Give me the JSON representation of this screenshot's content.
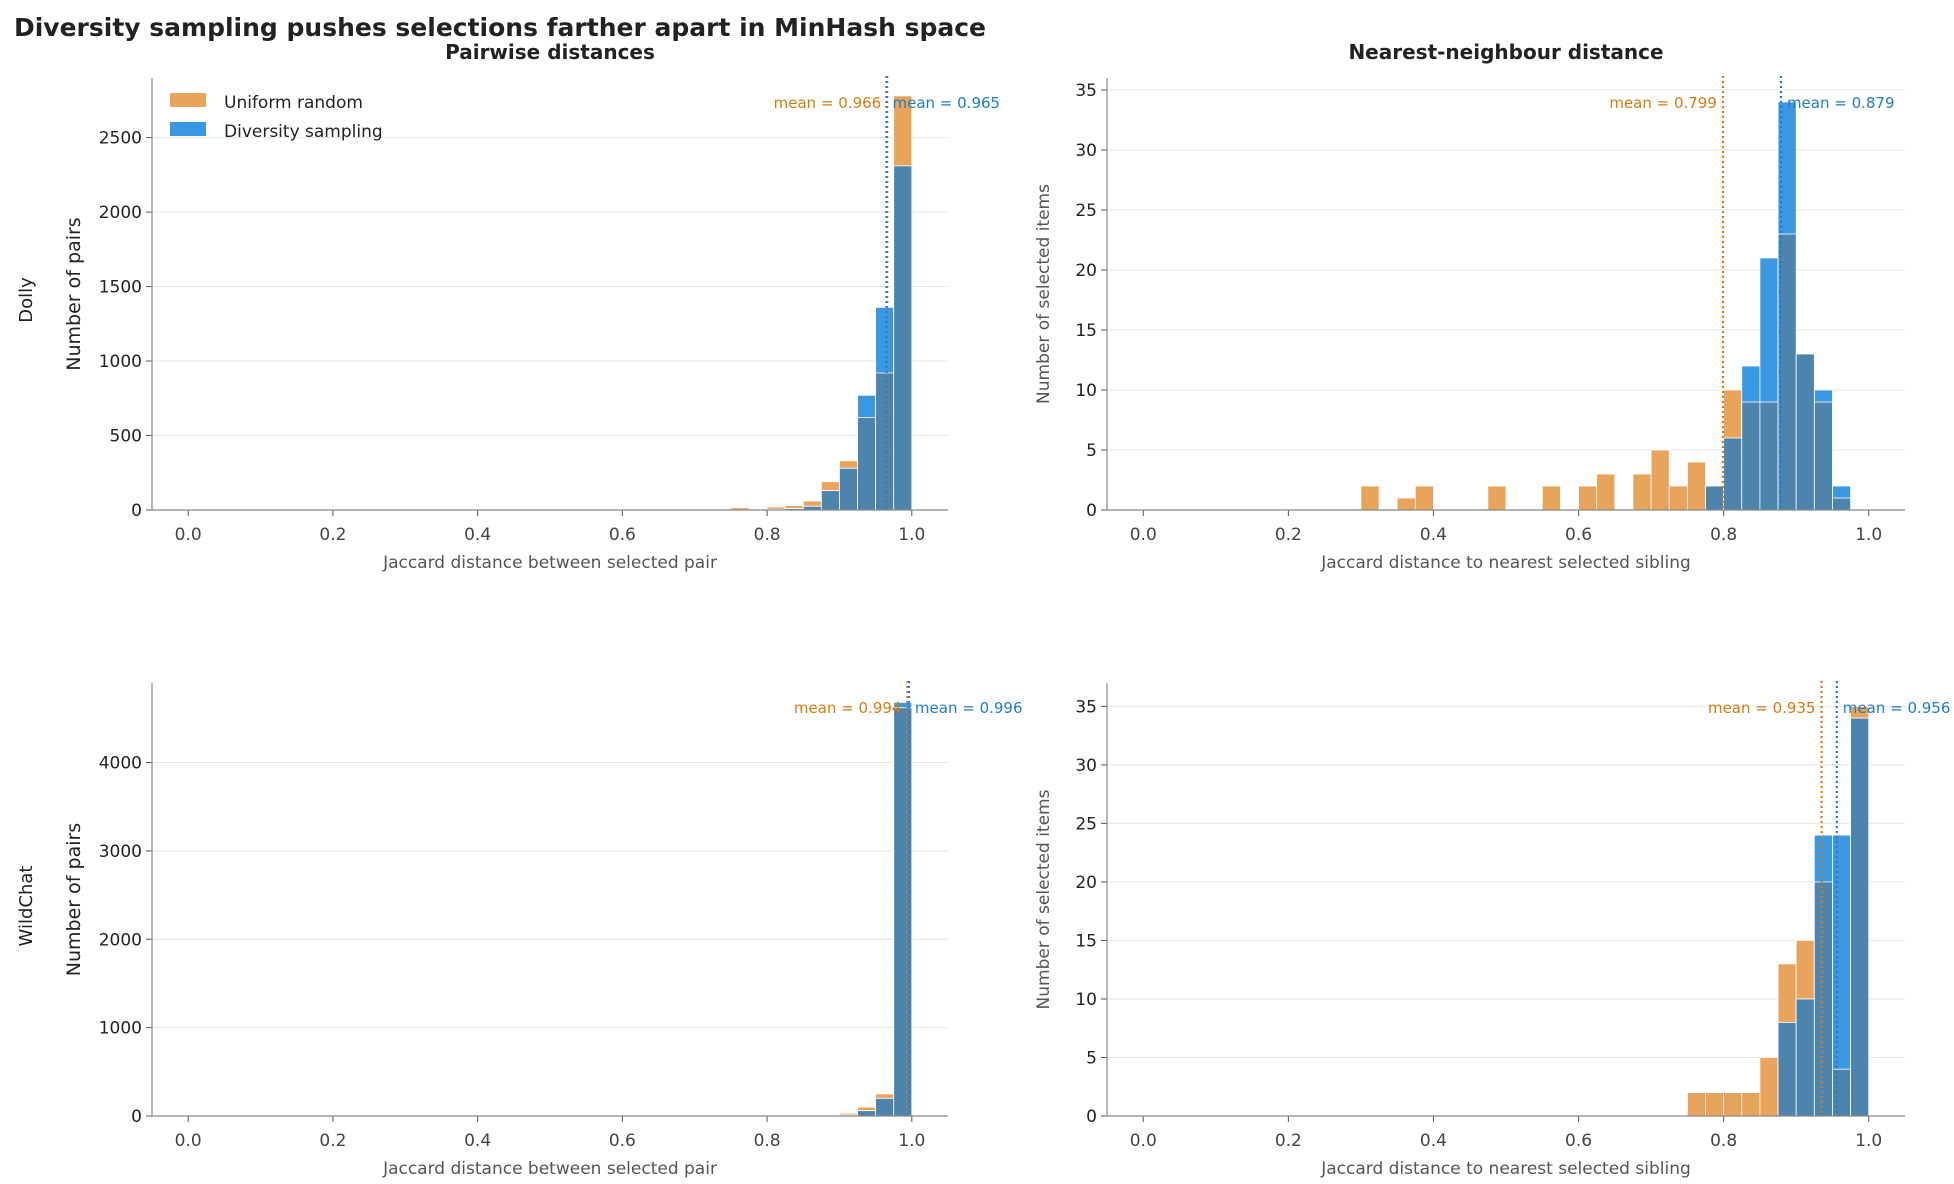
{
  "figure": {
    "suptitle": "Diversity sampling pushes selections farther apart in MinHash space",
    "row_labels": [
      "Dolly",
      "WildChat"
    ]
  },
  "colors": {
    "uniform": "#E8A45A",
    "diversity": "#3A97E2",
    "overlap": "#4C84AD",
    "uniform_text": "#D97A10",
    "diversity_text": "#1F7CC8"
  },
  "legend": {
    "placement": "top-left",
    "items": [
      "Uniform random",
      "Diversity sampling"
    ]
  },
  "chart_data": [
    {
      "type": "histogram",
      "title": "Pairwise distances",
      "row": "Dolly",
      "xlabel": "Jaccard distance between selected pair",
      "ylabel": "Number of pairs",
      "xlim": [
        -0.05,
        1.05
      ],
      "ylim": [
        0,
        2900
      ],
      "xticks": [
        "0.0",
        "0.2",
        "0.4",
        "0.6",
        "0.8",
        "1.0"
      ],
      "yticks": [
        "0",
        "500",
        "1000",
        "1500",
        "2000",
        "2500"
      ],
      "bin_width": 0.025,
      "bin_starts": [
        0.75,
        0.775,
        0.8,
        0.825,
        0.85,
        0.875,
        0.9,
        0.925,
        0.95,
        0.975
      ],
      "series": [
        {
          "name": "Uniform random",
          "values": [
            15,
            5,
            20,
            30,
            60,
            190,
            330,
            620,
            920,
            2780
          ]
        },
        {
          "name": "Diversity sampling",
          "values": [
            0,
            0,
            5,
            10,
            25,
            130,
            280,
            770,
            1360,
            2310
          ]
        }
      ],
      "means": [
        {
          "series": "Uniform random",
          "value": 0.966,
          "label": "mean = 0.966"
        },
        {
          "series": "Diversity sampling",
          "value": 0.965,
          "label": "mean = 0.965"
        }
      ],
      "grid": "y"
    },
    {
      "type": "histogram",
      "title": "Nearest-neighbour distance",
      "row": "Dolly",
      "xlabel": "Jaccard distance to nearest selected sibling",
      "ylabel": "Number of selected items",
      "xlim": [
        -0.05,
        1.05
      ],
      "ylim": [
        0,
        36
      ],
      "xticks": [
        "0.0",
        "0.2",
        "0.4",
        "0.6",
        "0.8",
        "1.0"
      ],
      "yticks": [
        "0",
        "5",
        "10",
        "15",
        "20",
        "25",
        "30",
        "35"
      ],
      "bin_width": 0.025,
      "bin_starts": [
        0.3,
        0.35,
        0.375,
        0.475,
        0.55,
        0.6,
        0.625,
        0.675,
        0.7,
        0.725,
        0.75,
        0.775,
        0.8,
        0.825,
        0.85,
        0.875,
        0.9,
        0.925,
        0.95
      ],
      "series": [
        {
          "name": "Uniform random",
          "values": [
            2,
            1,
            2,
            2,
            2,
            2,
            3,
            3,
            5,
            2,
            4,
            2,
            10,
            9,
            9,
            23,
            13,
            9,
            1
          ]
        },
        {
          "name": "Diversity sampling",
          "values": [
            0,
            0,
            0,
            0,
            0,
            0,
            0,
            0,
            0,
            0,
            0,
            2,
            6,
            12,
            21,
            34,
            13,
            10,
            2
          ]
        }
      ],
      "means": [
        {
          "series": "Uniform random",
          "value": 0.799,
          "label": "mean = 0.799"
        },
        {
          "series": "Diversity sampling",
          "value": 0.879,
          "label": "mean = 0.879"
        }
      ],
      "grid": "y"
    },
    {
      "type": "histogram",
      "title": "",
      "row": "WildChat",
      "xlabel": "Jaccard distance between selected pair",
      "ylabel": "Number of pairs",
      "xlim": [
        -0.05,
        1.05
      ],
      "ylim": [
        0,
        4900
      ],
      "xticks": [
        "0.0",
        "0.2",
        "0.4",
        "0.6",
        "0.8",
        "1.0"
      ],
      "yticks": [
        "0",
        "1000",
        "2000",
        "3000",
        "4000"
      ],
      "bin_width": 0.025,
      "bin_starts": [
        0.875,
        0.9,
        0.925,
        0.95,
        0.975
      ],
      "series": [
        {
          "name": "Uniform random",
          "values": [
            10,
            30,
            100,
            250,
            4620
          ]
        },
        {
          "name": "Diversity sampling",
          "values": [
            0,
            10,
            60,
            200,
            4680
          ]
        }
      ],
      "means": [
        {
          "series": "Uniform random",
          "value": 0.994,
          "label": "mean = 0.994"
        },
        {
          "series": "Diversity sampling",
          "value": 0.996,
          "label": "mean = 0.996"
        }
      ],
      "grid": "y"
    },
    {
      "type": "histogram",
      "title": "",
      "row": "WildChat",
      "xlabel": "Jaccard distance to nearest selected sibling",
      "ylabel": "Number of selected items",
      "xlim": [
        -0.05,
        1.05
      ],
      "ylim": [
        0,
        37
      ],
      "xticks": [
        "0.0",
        "0.2",
        "0.4",
        "0.6",
        "0.8",
        "1.0"
      ],
      "yticks": [
        "0",
        "5",
        "10",
        "15",
        "20",
        "25",
        "30",
        "35"
      ],
      "bin_width": 0.025,
      "bin_starts": [
        0.75,
        0.775,
        0.8,
        0.825,
        0.85,
        0.875,
        0.9,
        0.925,
        0.95,
        0.975
      ],
      "series": [
        {
          "name": "Uniform random",
          "values": [
            2,
            2,
            2,
            2,
            5,
            13,
            15,
            20,
            4,
            35
          ]
        },
        {
          "name": "Diversity sampling",
          "values": [
            0,
            0,
            0,
            0,
            0,
            8,
            10,
            24,
            24,
            34
          ]
        }
      ],
      "means": [
        {
          "series": "Uniform random",
          "value": 0.935,
          "label": "mean = 0.935"
        },
        {
          "series": "Diversity sampling",
          "value": 0.956,
          "label": "mean = 0.956"
        }
      ],
      "grid": "y"
    }
  ]
}
